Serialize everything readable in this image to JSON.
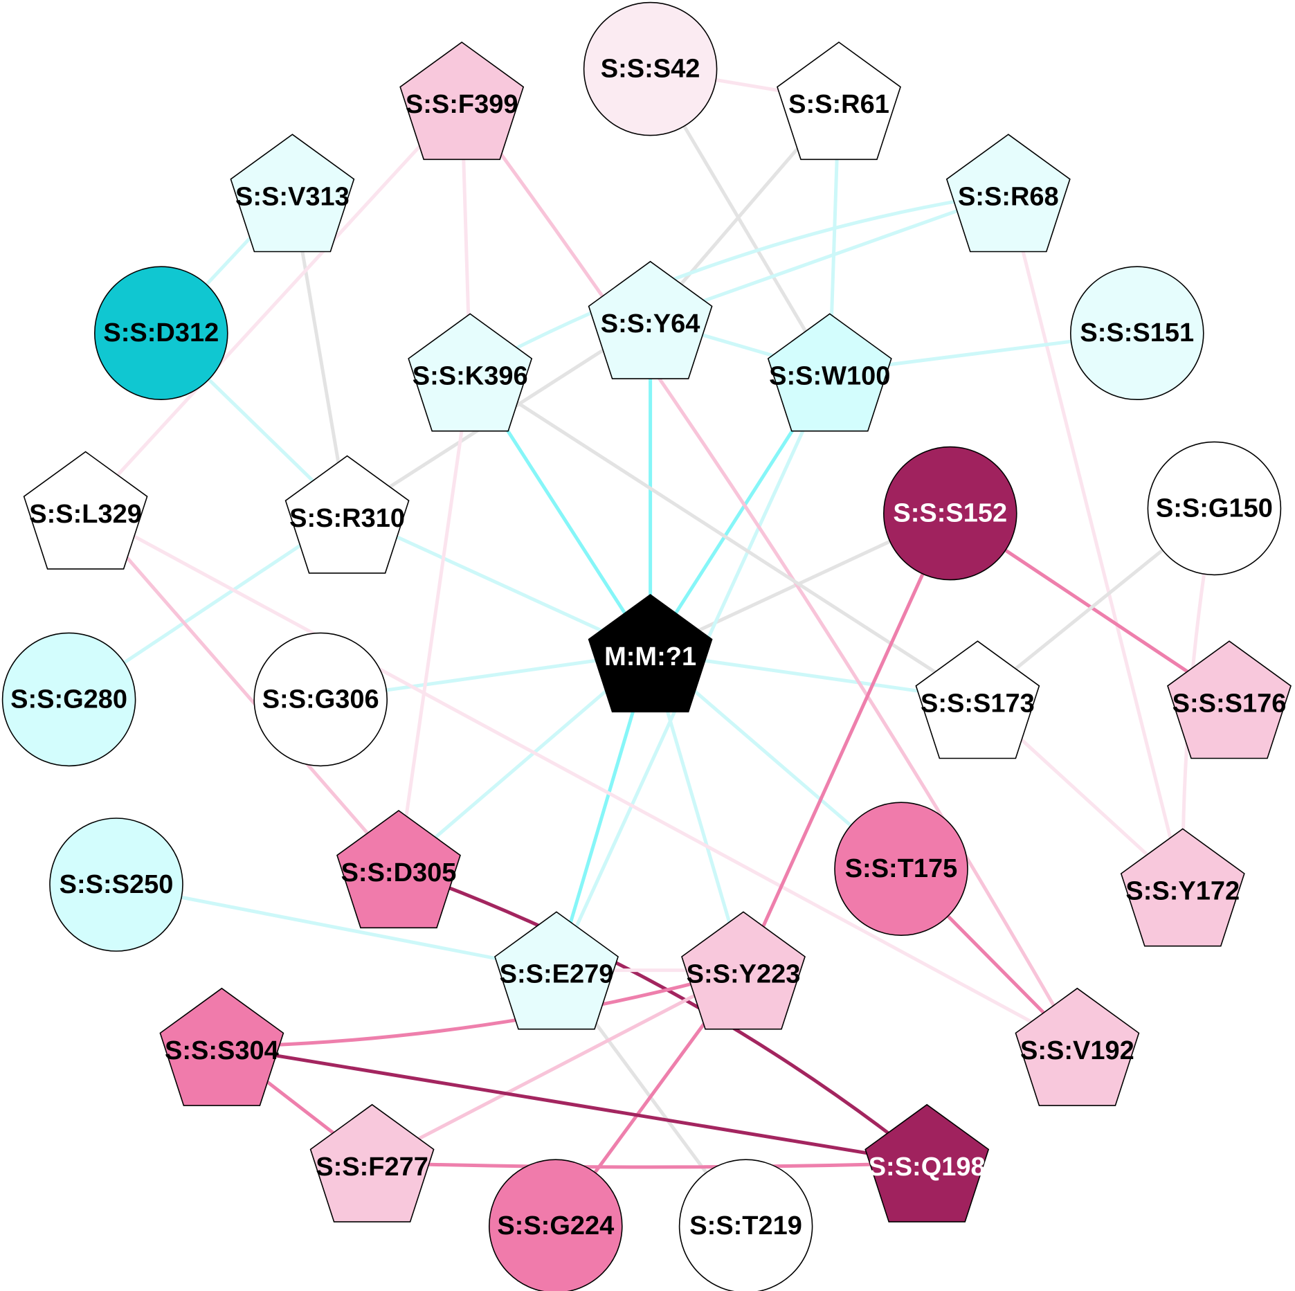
{
  "colors": {
    "white": "#ffffff",
    "cyan_pale": "#e6fdfd",
    "cyan_light": "#d3fdfd",
    "cyan_dark": "#10c7d1",
    "pink_pale": "#fbebf2",
    "pink_light": "#f8c8dc",
    "pink_mid": "#f07bab",
    "magenta": "#a0225e",
    "black": "#000000",
    "edge_cyan": "#86f6f8",
    "edge_cyan_faint": "#cdf8f9",
    "edge_grey": "#e3e3e3",
    "edge_pink_faint": "#fbe4ee",
    "edge_pink_light": "#f8c4d9",
    "edge_pink": "#ee7fac",
    "edge_magenta": "#a3255f"
  },
  "nodes": [
    {
      "id": "M:M:?1",
      "shape": "pentagon",
      "fill": "black",
      "text": "white"
    },
    {
      "id": "S:S:F399",
      "shape": "pentagon",
      "fill": "pink_light",
      "text": "black"
    },
    {
      "id": "S:S:S42",
      "shape": "circle",
      "fill": "pink_pale",
      "text": "black"
    },
    {
      "id": "S:S:R61",
      "shape": "pentagon",
      "fill": "white",
      "text": "black"
    },
    {
      "id": "S:S:V313",
      "shape": "pentagon",
      "fill": "cyan_pale",
      "text": "black"
    },
    {
      "id": "S:S:R68",
      "shape": "pentagon",
      "fill": "cyan_pale",
      "text": "black"
    },
    {
      "id": "S:S:D312",
      "shape": "circle",
      "fill": "cyan_dark",
      "text": "black"
    },
    {
      "id": "S:S:Y64",
      "shape": "pentagon",
      "fill": "cyan_pale",
      "text": "black"
    },
    {
      "id": "S:S:S151",
      "shape": "circle",
      "fill": "cyan_pale",
      "text": "black"
    },
    {
      "id": "S:S:K396",
      "shape": "pentagon",
      "fill": "cyan_pale",
      "text": "black"
    },
    {
      "id": "S:S:W100",
      "shape": "pentagon",
      "fill": "cyan_light",
      "text": "black"
    },
    {
      "id": "S:S:L329",
      "shape": "pentagon",
      "fill": "white",
      "text": "black"
    },
    {
      "id": "S:S:R310",
      "shape": "pentagon",
      "fill": "white",
      "text": "black"
    },
    {
      "id": "S:S:S152",
      "shape": "circle",
      "fill": "magenta",
      "text": "white"
    },
    {
      "id": "S:S:G150",
      "shape": "circle",
      "fill": "white",
      "text": "black"
    },
    {
      "id": "S:S:G280",
      "shape": "circle",
      "fill": "cyan_light",
      "text": "black"
    },
    {
      "id": "S:S:G306",
      "shape": "circle",
      "fill": "white",
      "text": "black"
    },
    {
      "id": "S:S:S173",
      "shape": "pentagon",
      "fill": "white",
      "text": "black"
    },
    {
      "id": "S:S:S176",
      "shape": "pentagon",
      "fill": "pink_light",
      "text": "black"
    },
    {
      "id": "S:S:S250",
      "shape": "circle",
      "fill": "cyan_light",
      "text": "black"
    },
    {
      "id": "S:S:D305",
      "shape": "pentagon",
      "fill": "pink_mid",
      "text": "black"
    },
    {
      "id": "S:S:T175",
      "shape": "circle",
      "fill": "pink_mid",
      "text": "black"
    },
    {
      "id": "S:S:Y172",
      "shape": "pentagon",
      "fill": "pink_light",
      "text": "black"
    },
    {
      "id": "S:S:E279",
      "shape": "pentagon",
      "fill": "cyan_pale",
      "text": "black"
    },
    {
      "id": "S:S:Y223",
      "shape": "pentagon",
      "fill": "pink_light",
      "text": "black"
    },
    {
      "id": "S:S:S304",
      "shape": "pentagon",
      "fill": "pink_mid",
      "text": "black"
    },
    {
      "id": "S:S:V192",
      "shape": "pentagon",
      "fill": "pink_light",
      "text": "black"
    },
    {
      "id": "S:S:F277",
      "shape": "pentagon",
      "fill": "pink_light",
      "text": "black"
    },
    {
      "id": "S:S:Q198",
      "shape": "pentagon",
      "fill": "magenta",
      "text": "white"
    },
    {
      "id": "S:S:G224",
      "shape": "circle",
      "fill": "pink_mid",
      "text": "black"
    },
    {
      "id": "S:S:T219",
      "shape": "circle",
      "fill": "white",
      "text": "black"
    }
  ],
  "edges": [
    {
      "source": "M:M:?1",
      "target": "S:S:Y64",
      "color": "edge_cyan"
    },
    {
      "source": "M:M:?1",
      "target": "S:S:W100",
      "color": "edge_cyan"
    },
    {
      "source": "M:M:?1",
      "target": "S:S:K396",
      "color": "edge_cyan"
    },
    {
      "source": "M:M:?1",
      "target": "S:S:E279",
      "color": "edge_cyan"
    },
    {
      "source": "M:M:?1",
      "target": "S:S:R310",
      "color": "edge_cyan_faint"
    },
    {
      "source": "M:M:?1",
      "target": "S:S:G306",
      "color": "edge_cyan_faint"
    },
    {
      "source": "M:M:?1",
      "target": "S:S:S173",
      "color": "edge_cyan_faint"
    },
    {
      "source": "M:M:?1",
      "target": "S:S:D305",
      "color": "edge_cyan_faint"
    },
    {
      "source": "M:M:?1",
      "target": "S:S:T175",
      "color": "edge_cyan_faint"
    },
    {
      "source": "M:M:?1",
      "target": "S:S:Y223",
      "color": "edge_cyan_faint"
    },
    {
      "source": "M:M:?1",
      "target": "S:S:S152",
      "color": "edge_grey"
    },
    {
      "source": "S:S:S42",
      "target": "S:S:R61",
      "color": "edge_pink_faint"
    },
    {
      "source": "S:S:S42",
      "target": "S:S:W100",
      "color": "edge_grey"
    },
    {
      "source": "S:S:R61",
      "target": "S:S:Y64",
      "color": "edge_grey"
    },
    {
      "source": "S:S:R61",
      "target": "S:S:W100",
      "color": "edge_cyan_faint"
    },
    {
      "source": "S:S:V313",
      "target": "S:S:D312",
      "color": "edge_cyan_faint"
    },
    {
      "source": "S:S:V313",
      "target": "S:S:R310",
      "color": "edge_grey"
    },
    {
      "source": "S:S:D312",
      "target": "S:S:R310",
      "color": "edge_cyan_faint"
    },
    {
      "source": "S:S:R68",
      "target": "S:S:Y64",
      "color": "edge_cyan_faint"
    },
    {
      "source": "S:S:R68",
      "target": "S:S:K396",
      "color": "edge_cyan_faint",
      "curve": 60
    },
    {
      "source": "S:S:R68",
      "target": "S:S:Y172",
      "color": "edge_pink_faint"
    },
    {
      "source": "S:S:Y64",
      "target": "S:S:R310",
      "color": "edge_grey"
    },
    {
      "source": "S:S:Y64",
      "target": "S:S:W100",
      "color": "edge_cyan_faint"
    },
    {
      "source": "S:S:W100",
      "target": "S:S:S151",
      "color": "edge_cyan_faint"
    },
    {
      "source": "S:S:W100",
      "target": "S:S:E279",
      "color": "edge_cyan_faint"
    },
    {
      "source": "S:S:F399",
      "target": "S:S:K396",
      "color": "edge_pink_faint"
    },
    {
      "source": "S:S:F399",
      "target": "S:S:L329",
      "color": "edge_pink_faint"
    },
    {
      "source": "S:S:F399",
      "target": "S:S:V192",
      "color": "edge_pink_light",
      "curve": -40
    },
    {
      "source": "S:S:K396",
      "target": "S:S:S173",
      "color": "edge_grey"
    },
    {
      "source": "S:S:K396",
      "target": "S:S:D305",
      "color": "edge_pink_faint"
    },
    {
      "source": "S:S:R310",
      "target": "S:S:G280",
      "color": "edge_cyan_faint"
    },
    {
      "source": "S:S:L329",
      "target": "S:S:D305",
      "color": "edge_pink_light"
    },
    {
      "source": "S:S:L329",
      "target": "S:S:V192",
      "color": "edge_pink_faint"
    },
    {
      "source": "S:S:S152",
      "target": "S:S:S176",
      "color": "edge_pink"
    },
    {
      "source": "S:S:S152",
      "target": "S:S:Y223",
      "color": "edge_pink"
    },
    {
      "source": "S:S:G150",
      "target": "S:S:S173",
      "color": "edge_grey"
    },
    {
      "source": "S:S:G150",
      "target": "S:S:Y172",
      "color": "edge_pink_faint",
      "curve": 20
    },
    {
      "source": "S:S:S173",
      "target": "S:S:Y172",
      "color": "edge_pink_faint"
    },
    {
      "source": "S:S:S250",
      "target": "S:S:E279",
      "color": "edge_cyan_faint"
    },
    {
      "source": "S:S:D305",
      "target": "S:S:Q198",
      "color": "edge_magenta",
      "curve": -60
    },
    {
      "source": "S:S:T175",
      "target": "S:S:V192",
      "color": "edge_pink"
    },
    {
      "source": "S:S:E279",
      "target": "S:S:Y223",
      "color": "edge_pink_faint"
    },
    {
      "source": "S:S:E279",
      "target": "S:S:T219",
      "color": "edge_grey"
    },
    {
      "source": "S:S:Y223",
      "target": "S:S:S304",
      "color": "edge_pink",
      "curve": -40
    },
    {
      "source": "S:S:Y223",
      "target": "S:S:F277",
      "color": "edge_pink_light"
    },
    {
      "source": "S:S:Y223",
      "target": "S:S:G224",
      "color": "edge_pink"
    },
    {
      "source": "S:S:S304",
      "target": "S:S:F277",
      "color": "edge_pink"
    },
    {
      "source": "S:S:S304",
      "target": "S:S:Q198",
      "color": "edge_magenta"
    },
    {
      "source": "S:S:F277",
      "target": "S:S:Q198",
      "color": "edge_pink",
      "curve": 10
    }
  ]
}
